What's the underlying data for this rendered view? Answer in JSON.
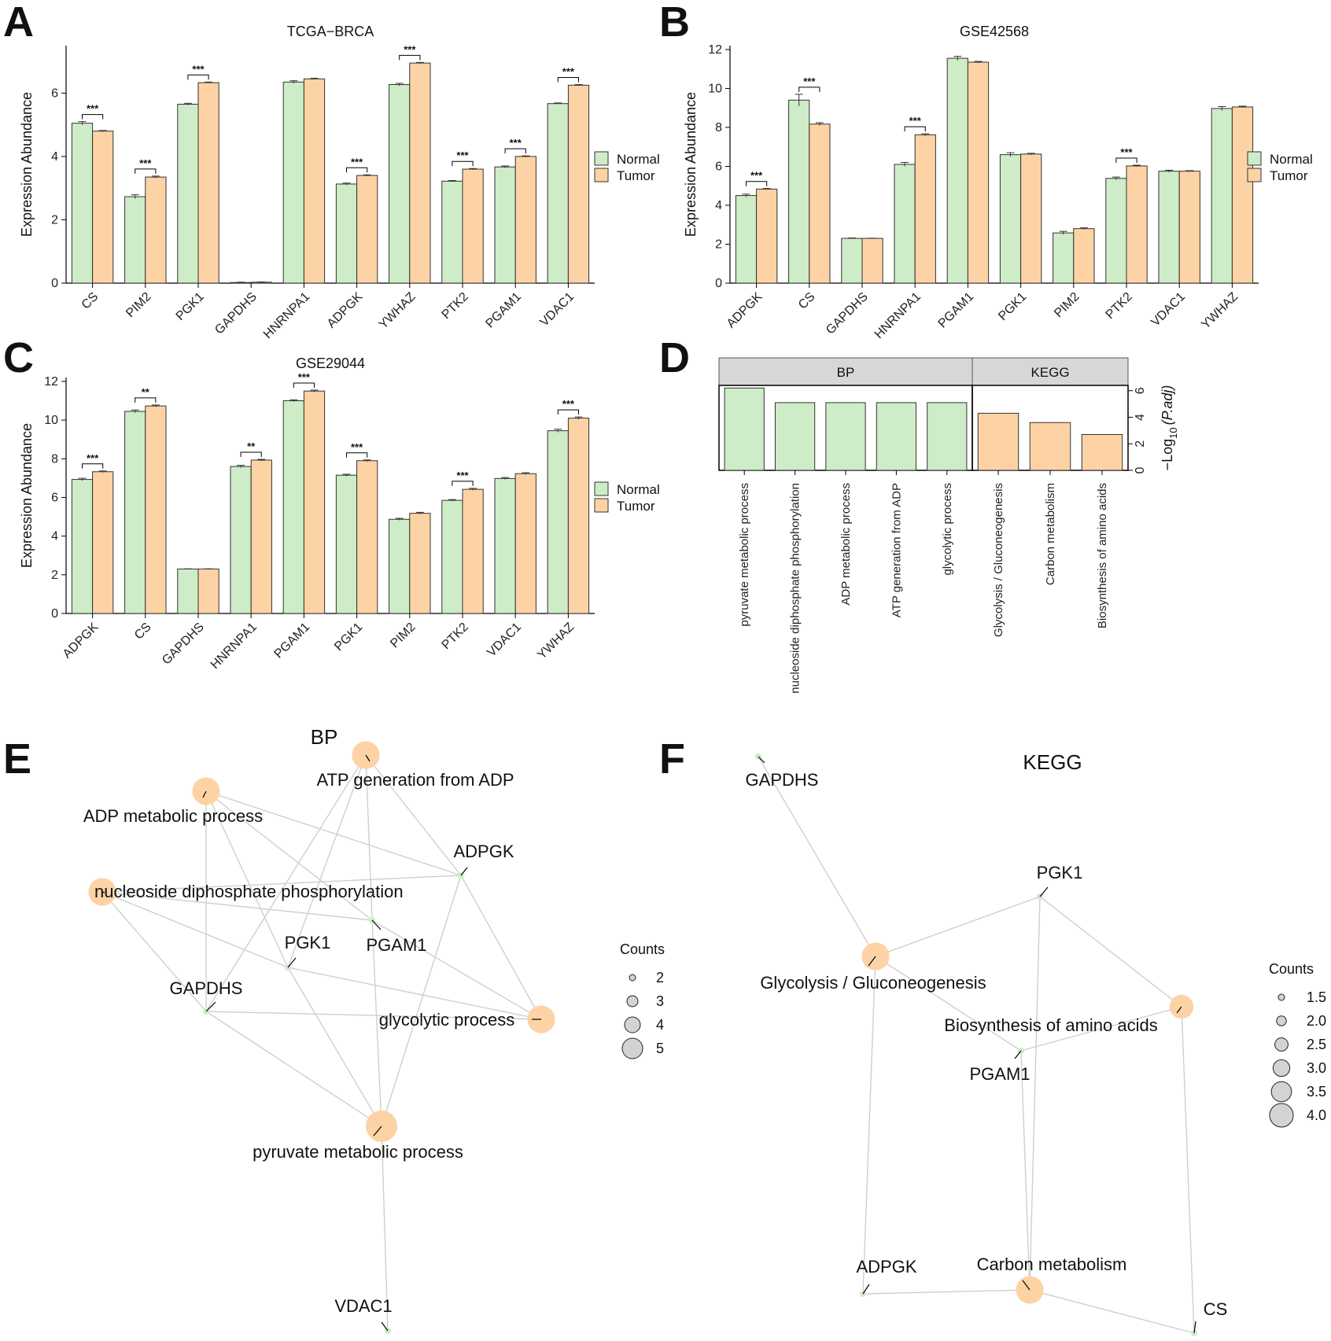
{
  "colors": {
    "normal": "#cdecc7",
    "tumor": "#fdd3a5",
    "node_gene": "#cdecc7",
    "node_term": "#fdd3a5",
    "edge": "#cfcfcf",
    "strip": "#d7d7d7"
  },
  "panel_labels": [
    "A",
    "B",
    "C",
    "D",
    "E",
    "F"
  ],
  "legend": {
    "normal": "Normal",
    "tumor": "Tumor"
  },
  "chart_data": [
    {
      "id": "A",
      "type": "bar",
      "title": "TCGA−BRCA",
      "ylabel": "Expression Abundance",
      "ylim": [
        0,
        7.5
      ],
      "yticks": [
        0,
        2,
        4,
        6
      ],
      "categories": [
        "CS",
        "PIM2",
        "PGK1",
        "GAPDHS",
        "HNRNPA1",
        "ADPGK",
        "YWHAZ",
        "PTK2",
        "PGAM1",
        "VDAC1"
      ],
      "series": [
        {
          "name": "Normal",
          "values": [
            5.05,
            2.73,
            5.65,
            0.02,
            6.35,
            3.13,
            6.27,
            3.22,
            3.67,
            5.67
          ],
          "errors": [
            0.05,
            0.06,
            0.03,
            0.01,
            0.04,
            0.03,
            0.04,
            0.02,
            0.03,
            0.02
          ]
        },
        {
          "name": "Tumor",
          "values": [
            4.8,
            3.35,
            6.33,
            0.03,
            6.45,
            3.4,
            6.95,
            3.6,
            4.0,
            6.25
          ],
          "errors": [
            0.02,
            0.03,
            0.02,
            0.01,
            0.02,
            0.02,
            0.02,
            0.02,
            0.02,
            0.02
          ]
        }
      ],
      "significance": [
        "***",
        "***",
        "***",
        "",
        "",
        "***",
        "***",
        "***",
        "***",
        "***"
      ]
    },
    {
      "id": "B",
      "type": "bar",
      "title": "GSE42568",
      "ylabel": "Expression Abundance",
      "ylim": [
        0,
        12.2
      ],
      "yticks": [
        0,
        2,
        4,
        6,
        8,
        10,
        12
      ],
      "categories": [
        "ADPGK",
        "CS",
        "GAPDHS",
        "HNRNPA1",
        "PGAM1",
        "PGK1",
        "PIM2",
        "PTK2",
        "VDAC1",
        "YWHAZ"
      ],
      "series": [
        {
          "name": "Normal",
          "values": [
            4.5,
            9.4,
            2.3,
            6.1,
            11.55,
            6.6,
            2.58,
            5.38,
            5.75,
            8.97
          ],
          "errors": [
            0.07,
            0.3,
            0.02,
            0.1,
            0.1,
            0.1,
            0.08,
            0.07,
            0.05,
            0.1
          ]
        },
        {
          "name": "Tumor",
          "values": [
            4.83,
            8.17,
            2.3,
            7.62,
            11.35,
            6.63,
            2.8,
            6.02,
            5.75,
            9.05
          ],
          "errors": [
            0.03,
            0.07,
            0.01,
            0.05,
            0.04,
            0.04,
            0.04,
            0.04,
            0.03,
            0.04
          ]
        }
      ],
      "significance": [
        "***",
        "***",
        "",
        "***",
        "",
        "",
        "",
        "***",
        "",
        ""
      ]
    },
    {
      "id": "C",
      "type": "bar",
      "title": "GSE29044",
      "ylabel": "Expression Abundance",
      "ylim": [
        0,
        12.2
      ],
      "yticks": [
        0,
        2,
        4,
        6,
        8,
        10,
        12
      ],
      "categories": [
        "ADPGK",
        "CS",
        "GAPDHS",
        "HNRNPA1",
        "PGAM1",
        "PGK1",
        "PIM2",
        "PTK2",
        "VDAC1",
        "YWHAZ"
      ],
      "series": [
        {
          "name": "Normal",
          "values": [
            6.93,
            10.45,
            2.3,
            7.6,
            11.0,
            7.15,
            4.87,
            5.85,
            6.98,
            9.45
          ],
          "errors": [
            0.06,
            0.07,
            0.01,
            0.06,
            0.05,
            0.05,
            0.05,
            0.04,
            0.05,
            0.08
          ]
        },
        {
          "name": "Tumor",
          "values": [
            7.33,
            10.73,
            2.3,
            7.93,
            11.5,
            7.9,
            5.18,
            6.42,
            7.23,
            10.1
          ],
          "errors": [
            0.04,
            0.05,
            0.01,
            0.04,
            0.05,
            0.04,
            0.05,
            0.05,
            0.05,
            0.06
          ]
        }
      ],
      "significance": [
        "***",
        "**",
        "",
        "**",
        "***",
        "***",
        "",
        "***",
        "",
        "***"
      ]
    },
    {
      "id": "D",
      "type": "bar",
      "ylabel_main": "−Log",
      "ylabel_sub": "10",
      "ylabel_tail": "(P.adj)",
      "ylim": [
        0,
        6.4
      ],
      "yticks": [
        0,
        2,
        4,
        6
      ],
      "facets": [
        {
          "name": "BP",
          "terms": [
            "pyruvate metabolic process",
            "nucleoside diphosphate phosphorylation",
            "ADP metabolic process",
            "ATP generation from ADP",
            "glycolytic process"
          ],
          "values": [
            6.2,
            5.1,
            5.1,
            5.1,
            5.1
          ]
        },
        {
          "name": "KEGG",
          "terms": [
            "Glycolysis / Gluconeogenesis",
            "Carbon metabolism",
            "Biosynthesis of amino acids"
          ],
          "values": [
            4.3,
            3.6,
            2.7
          ]
        }
      ]
    }
  ],
  "networks": [
    {
      "id": "E",
      "title": "BP",
      "nodes": [
        {
          "id": "atp",
          "label": "ATP generation from ADP",
          "type": "term",
          "count": 4
        },
        {
          "id": "adp",
          "label": "ADP metabolic process",
          "type": "term",
          "count": 4
        },
        {
          "id": "nuc",
          "label": "nucleoside diphosphate phosphorylation",
          "type": "term",
          "count": 4
        },
        {
          "id": "gly",
          "label": "glycolytic process",
          "type": "term",
          "count": 4
        },
        {
          "id": "pyr",
          "label": "pyruvate metabolic process",
          "type": "term",
          "count": 5
        },
        {
          "id": "adpgk",
          "label": "ADPGK",
          "type": "gene"
        },
        {
          "id": "pgam1",
          "label": "PGAM1",
          "type": "gene"
        },
        {
          "id": "pgk1",
          "label": "PGK1",
          "type": "gene"
        },
        {
          "id": "gapdhs",
          "label": "GAPDHS",
          "type": "gene"
        },
        {
          "id": "vdac1",
          "label": "VDAC1",
          "type": "gene"
        }
      ],
      "edges": [
        [
          "atp",
          "gapdhs"
        ],
        [
          "atp",
          "pgk1"
        ],
        [
          "atp",
          "pgam1"
        ],
        [
          "atp",
          "adpgk"
        ],
        [
          "adp",
          "gapdhs"
        ],
        [
          "adp",
          "pgk1"
        ],
        [
          "adp",
          "pgam1"
        ],
        [
          "adp",
          "adpgk"
        ],
        [
          "nuc",
          "gapdhs"
        ],
        [
          "nuc",
          "pgk1"
        ],
        [
          "nuc",
          "pgam1"
        ],
        [
          "nuc",
          "adpgk"
        ],
        [
          "gly",
          "gapdhs"
        ],
        [
          "gly",
          "pgk1"
        ],
        [
          "gly",
          "pgam1"
        ],
        [
          "gly",
          "adpgk"
        ],
        [
          "pyr",
          "gapdhs"
        ],
        [
          "pyr",
          "pgk1"
        ],
        [
          "pyr",
          "pgam1"
        ],
        [
          "pyr",
          "adpgk"
        ],
        [
          "pyr",
          "vdac1"
        ]
      ],
      "legend": {
        "title": "Counts",
        "items": [
          "2",
          "3",
          "4",
          "5"
        ]
      }
    },
    {
      "id": "F",
      "title": "KEGG",
      "nodes": [
        {
          "id": "glyco",
          "label": "Glycolysis / Gluconeogenesis",
          "type": "term",
          "count": 4
        },
        {
          "id": "bio",
          "label": "Biosynthesis of amino acids",
          "type": "term",
          "count": 3
        },
        {
          "id": "carbon",
          "label": "Carbon metabolism",
          "type": "term",
          "count": 4
        },
        {
          "id": "gapdhs",
          "label": "GAPDHS",
          "type": "gene"
        },
        {
          "id": "pgk1",
          "label": "PGK1",
          "type": "gene"
        },
        {
          "id": "pgam1",
          "label": "PGAM1",
          "type": "gene"
        },
        {
          "id": "adpgk",
          "label": "ADPGK",
          "type": "gene"
        },
        {
          "id": "cs",
          "label": "CS",
          "type": "gene"
        }
      ],
      "edges": [
        [
          "glyco",
          "gapdhs"
        ],
        [
          "glyco",
          "pgk1"
        ],
        [
          "glyco",
          "pgam1"
        ],
        [
          "glyco",
          "adpgk"
        ],
        [
          "bio",
          "pgk1"
        ],
        [
          "bio",
          "pgam1"
        ],
        [
          "bio",
          "cs"
        ],
        [
          "carbon",
          "pgk1"
        ],
        [
          "carbon",
          "pgam1"
        ],
        [
          "carbon",
          "adpgk"
        ],
        [
          "carbon",
          "cs"
        ]
      ],
      "legend": {
        "title": "Counts",
        "items": [
          "1.5",
          "2.0",
          "2.5",
          "3.0",
          "3.5",
          "4.0"
        ]
      }
    }
  ]
}
